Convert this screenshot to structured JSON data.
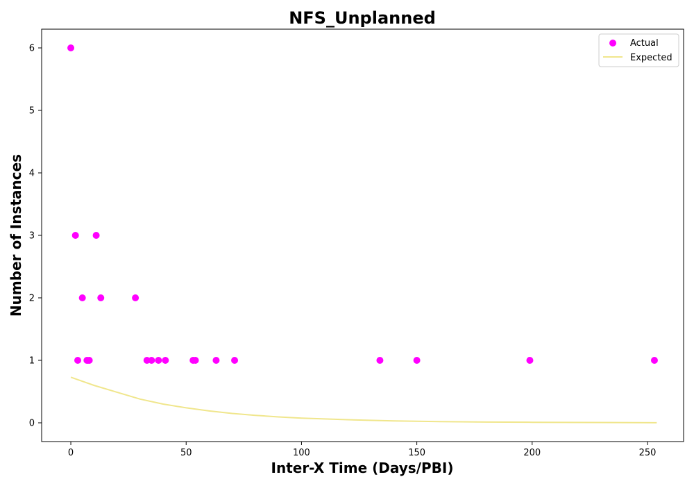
{
  "chart_data": {
    "type": "scatter",
    "title": "NFS_Unplanned",
    "xlabel": "Inter-X Time (Days/PBI)",
    "ylabel": "Number of Instances",
    "xlim": [
      -12.65,
      265.65
    ],
    "ylim": [
      -0.3,
      6.3
    ],
    "xticks": [
      0,
      50,
      100,
      150,
      200,
      250
    ],
    "yticks": [
      0,
      1,
      2,
      3,
      4,
      5,
      6
    ],
    "grid": false,
    "legend_position": "top-right",
    "series": [
      {
        "name": "Actual",
        "kind": "scatter",
        "color": "#ff00ff",
        "points": [
          {
            "x": 0,
            "y": 6
          },
          {
            "x": 2,
            "y": 3
          },
          {
            "x": 3,
            "y": 1
          },
          {
            "x": 5,
            "y": 2
          },
          {
            "x": 7,
            "y": 1
          },
          {
            "x": 8,
            "y": 1
          },
          {
            "x": 11,
            "y": 3
          },
          {
            "x": 13,
            "y": 2
          },
          {
            "x": 28,
            "y": 2
          },
          {
            "x": 33,
            "y": 1
          },
          {
            "x": 35,
            "y": 1
          },
          {
            "x": 38,
            "y": 1
          },
          {
            "x": 41,
            "y": 1
          },
          {
            "x": 53,
            "y": 1
          },
          {
            "x": 54,
            "y": 1
          },
          {
            "x": 63,
            "y": 1
          },
          {
            "x": 71,
            "y": 1
          },
          {
            "x": 134,
            "y": 1
          },
          {
            "x": 150,
            "y": 1
          },
          {
            "x": 199,
            "y": 1
          },
          {
            "x": 253,
            "y": 1
          }
        ]
      },
      {
        "name": "Expected",
        "kind": "line",
        "color": "#f0e68c",
        "points": [
          {
            "x": 0,
            "y": 0.73
          },
          {
            "x": 10,
            "y": 0.6
          },
          {
            "x": 20,
            "y": 0.49
          },
          {
            "x": 30,
            "y": 0.38
          },
          {
            "x": 40,
            "y": 0.3
          },
          {
            "x": 50,
            "y": 0.24
          },
          {
            "x": 60,
            "y": 0.19
          },
          {
            "x": 70,
            "y": 0.15
          },
          {
            "x": 80,
            "y": 0.12
          },
          {
            "x": 90,
            "y": 0.095
          },
          {
            "x": 100,
            "y": 0.075
          },
          {
            "x": 120,
            "y": 0.05
          },
          {
            "x": 140,
            "y": 0.03
          },
          {
            "x": 160,
            "y": 0.02
          },
          {
            "x": 180,
            "y": 0.013
          },
          {
            "x": 200,
            "y": 0.009
          },
          {
            "x": 225,
            "y": 0.005
          },
          {
            "x": 254,
            "y": 0.002
          }
        ]
      }
    ]
  }
}
